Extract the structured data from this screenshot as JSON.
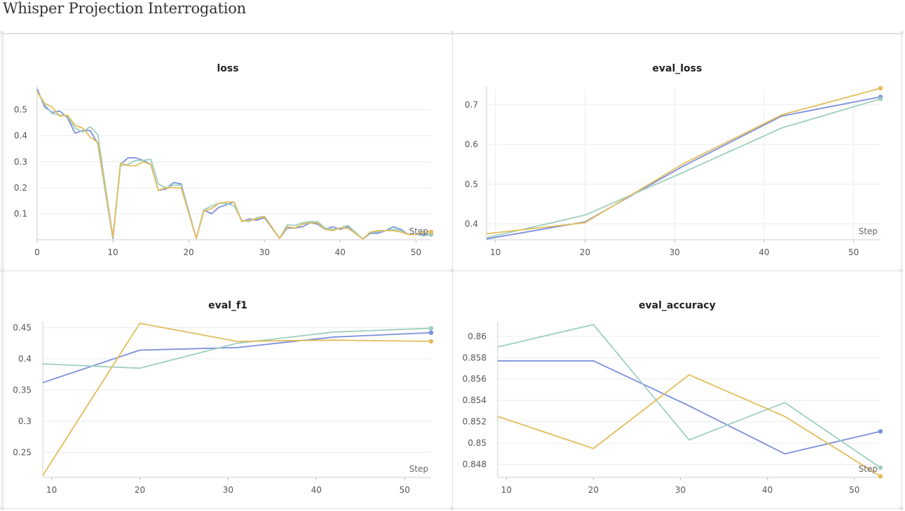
{
  "page": {
    "title": "Whisper Projection Interrogation"
  },
  "colors": {
    "run1": "#7b8fdc",
    "run2": "#9ecfbe",
    "run3": "#e3bd5c"
  },
  "chart_data": [
    {
      "type": "line",
      "title": "loss",
      "xlabel": "Step",
      "xlim": [
        0,
        52
      ],
      "ylim": [
        0,
        0.58
      ],
      "xticks": [
        0,
        10,
        20,
        30,
        40,
        50
      ],
      "yticks": [
        0.1,
        0.2,
        0.3,
        0.4,
        0.5
      ],
      "yticklabels": [
        "0.1",
        "0.2",
        "0.3",
        "0.4",
        "0.5"
      ],
      "show_xgrid": false,
      "markers_last_point": true,
      "series": [
        {
          "color": "#7b8fdc",
          "x": [
            0,
            1,
            2,
            3,
            4,
            5,
            6,
            7,
            8,
            10,
            11,
            12,
            13,
            14,
            15,
            16,
            17,
            18,
            19,
            21,
            22,
            23,
            24,
            25,
            26,
            27,
            28,
            29,
            30,
            32,
            33,
            34,
            35,
            36,
            37,
            38,
            39,
            40,
            41,
            43,
            44,
            45,
            46,
            47,
            48,
            49,
            50,
            51,
            52
          ],
          "y": [
            0.58,
            0.51,
            0.49,
            0.495,
            0.47,
            0.41,
            0.42,
            0.42,
            0.37,
            0.005,
            0.29,
            0.315,
            0.315,
            0.305,
            0.29,
            0.19,
            0.195,
            0.22,
            0.215,
            0.005,
            0.115,
            0.1,
            0.125,
            0.135,
            0.145,
            0.07,
            0.08,
            0.075,
            0.085,
            0.005,
            0.045,
            0.045,
            0.05,
            0.065,
            0.06,
            0.04,
            0.05,
            0.04,
            0.05,
            0.003,
            0.025,
            0.025,
            0.035,
            0.05,
            0.04,
            0.02,
            0.02,
            0.02,
            0.02
          ]
        },
        {
          "color": "#9ecfbe",
          "x": [
            0,
            1,
            2,
            3,
            4,
            5,
            6,
            7,
            8,
            10,
            11,
            12,
            13,
            14,
            15,
            16,
            17,
            18,
            19,
            21,
            22,
            23,
            24,
            25,
            26,
            27,
            28,
            29,
            30,
            32,
            33,
            34,
            35,
            36,
            37,
            38,
            39,
            40,
            41,
            43,
            44,
            45,
            46,
            47,
            48,
            49,
            50,
            51,
            52
          ],
          "y": [
            0.57,
            0.52,
            0.485,
            0.48,
            0.475,
            0.43,
            0.415,
            0.435,
            0.405,
            0.01,
            0.285,
            0.29,
            0.305,
            0.305,
            0.31,
            0.215,
            0.2,
            0.21,
            0.21,
            0.005,
            0.115,
            0.13,
            0.14,
            0.14,
            0.13,
            0.075,
            0.07,
            0.085,
            0.09,
            0.005,
            0.058,
            0.055,
            0.065,
            0.07,
            0.07,
            0.045,
            0.04,
            0.045,
            0.055,
            0.003,
            0.03,
            0.03,
            0.035,
            0.04,
            0.035,
            0.02,
            0.02,
            0.015,
            0.02
          ]
        },
        {
          "color": "#e3bd5c",
          "x": [
            0,
            1,
            2,
            3,
            4,
            5,
            6,
            7,
            8,
            10,
            11,
            12,
            13,
            14,
            15,
            16,
            17,
            18,
            19,
            21,
            22,
            23,
            24,
            25,
            26,
            27,
            28,
            29,
            30,
            32,
            33,
            34,
            35,
            36,
            37,
            38,
            39,
            40,
            41,
            43,
            44,
            45,
            46,
            47,
            48,
            49,
            50,
            51,
            52
          ],
          "y": [
            0.57,
            0.525,
            0.51,
            0.475,
            0.48,
            0.44,
            0.43,
            0.395,
            0.375,
            0.01,
            0.295,
            0.285,
            0.285,
            0.3,
            0.29,
            0.19,
            0.2,
            0.2,
            0.2,
            0.005,
            0.11,
            0.12,
            0.14,
            0.145,
            0.145,
            0.07,
            0.075,
            0.08,
            0.09,
            0.005,
            0.05,
            0.045,
            0.06,
            0.065,
            0.065,
            0.04,
            0.035,
            0.045,
            0.045,
            0.003,
            0.03,
            0.035,
            0.035,
            0.035,
            0.03,
            0.02,
            0.02,
            0.03,
            0.03
          ]
        }
      ]
    },
    {
      "type": "line",
      "title": "eval_loss",
      "xlabel": "Step",
      "xlim": [
        9,
        53
      ],
      "ylim": [
        0.36,
        0.74
      ],
      "xticks": [
        10,
        20,
        30,
        40,
        50
      ],
      "yticks": [
        0.4,
        0.5,
        0.6,
        0.7
      ],
      "yticklabels": [
        "0.4",
        "0.5",
        "0.6",
        "0.7"
      ],
      "show_xgrid": true,
      "series": [
        {
          "color": "#7b8fdc",
          "x": [
            9,
            20,
            31,
            42,
            53
          ],
          "y": [
            0.362,
            0.405,
            0.546,
            0.672,
            0.72
          ]
        },
        {
          "color": "#9ecfbe",
          "x": [
            9,
            20,
            31,
            42,
            53
          ],
          "y": [
            0.365,
            0.422,
            0.53,
            0.642,
            0.715
          ]
        },
        {
          "color": "#e3bd5c",
          "x": [
            9,
            20,
            31,
            42,
            53
          ],
          "y": [
            0.375,
            0.403,
            0.552,
            0.675,
            0.742
          ]
        }
      ]
    },
    {
      "type": "line",
      "title": "eval_f1",
      "xlabel": "Step",
      "xlim": [
        9,
        53
      ],
      "ylim": [
        0.21,
        0.455
      ],
      "xticks": [
        10,
        20,
        30,
        40,
        50
      ],
      "yticks": [
        0.25,
        0.3,
        0.35,
        0.4,
        0.45
      ],
      "yticklabels": [
        "0.25",
        "0.3",
        "0.35",
        "0.4",
        "0.45"
      ],
      "show_xgrid": false,
      "series": [
        {
          "color": "#7b8fdc",
          "x": [
            9,
            20,
            31,
            42,
            53
          ],
          "y": [
            0.362,
            0.414,
            0.418,
            0.435,
            0.442
          ]
        },
        {
          "color": "#9ecfbe",
          "x": [
            9,
            20,
            31,
            42,
            53
          ],
          "y": [
            0.392,
            0.385,
            0.425,
            0.443,
            0.449
          ]
        },
        {
          "color": "#e3bd5c",
          "x": [
            9,
            20,
            31,
            42,
            53
          ],
          "y": [
            0.213,
            0.457,
            0.428,
            0.43,
            0.428
          ]
        }
      ]
    },
    {
      "type": "line",
      "title": "eval_accuracy",
      "xlabel": "Step",
      "xlim": [
        9,
        53
      ],
      "ylim": [
        0.8468,
        0.8611
      ],
      "xticks": [
        10,
        20,
        30,
        40,
        50
      ],
      "yticks": [
        0.848,
        0.85,
        0.852,
        0.854,
        0.856,
        0.858,
        0.86
      ],
      "yticklabels": [
        "0.848",
        "0.85",
        "0.852",
        "0.854",
        "0.856",
        "0.858",
        "0.86"
      ],
      "show_xgrid": false,
      "series": [
        {
          "color": "#7b8fdc",
          "x": [
            9,
            20,
            31,
            42,
            53
          ],
          "y": [
            0.8577,
            0.8577,
            0.8535,
            0.849,
            0.8511
          ]
        },
        {
          "color": "#9ecfbe",
          "x": [
            9,
            20,
            31,
            42,
            53
          ],
          "y": [
            0.859,
            0.8611,
            0.8503,
            0.8538,
            0.8477
          ]
        },
        {
          "color": "#e3bd5c",
          "x": [
            9,
            20,
            31,
            42,
            53
          ],
          "y": [
            0.8525,
            0.8495,
            0.8564,
            0.8525,
            0.8469
          ]
        }
      ]
    }
  ]
}
